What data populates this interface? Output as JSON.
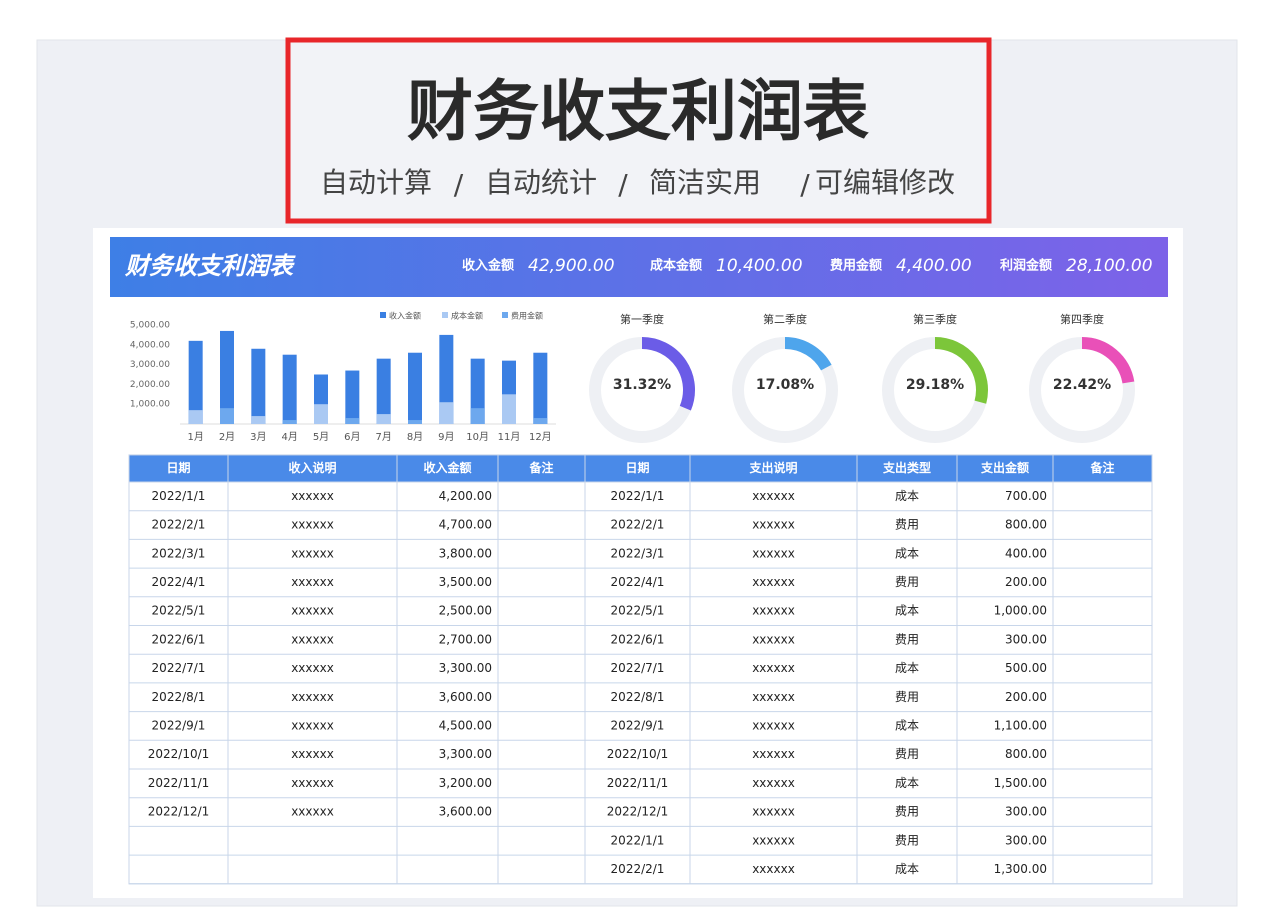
{
  "header": {
    "title": "财务收支利润表",
    "features": [
      "自动计算",
      "自动统计",
      "简洁实用",
      "可编辑修改"
    ]
  },
  "sheet": {
    "title": "财务收支利润表",
    "summary": [
      {
        "label": "收入金额",
        "value": "42,900.00"
      },
      {
        "label": "成本金额",
        "value": "10,400.00"
      },
      {
        "label": "费用金额",
        "value": "4,400.00"
      },
      {
        "label": "利润金额",
        "value": "28,100.00"
      }
    ]
  },
  "chart_data": [
    {
      "type": "bar",
      "categories": [
        "1月",
        "2月",
        "3月",
        "4月",
        "5月",
        "6月",
        "7月",
        "8月",
        "9月",
        "10月",
        "11月",
        "12月"
      ],
      "series": [
        {
          "name": "收入金额",
          "color": "#3a7fe2",
          "values": [
            4200,
            4700,
            3800,
            3500,
            2500,
            2700,
            3300,
            3600,
            4500,
            3300,
            3200,
            3600
          ]
        },
        {
          "name": "成本金额",
          "color": "#aac9f3",
          "values": [
            700,
            0,
            400,
            0,
            1000,
            0,
            500,
            0,
            1100,
            0,
            1500,
            0
          ]
        },
        {
          "name": "费用金额",
          "color": "#6da8ee",
          "values": [
            0,
            800,
            0,
            200,
            0,
            300,
            0,
            200,
            0,
            800,
            0,
            300
          ]
        }
      ],
      "ylim": [
        0,
        5000
      ],
      "yticks": [
        {
          "value": 1000,
          "label": "1,000.00"
        },
        {
          "value": 2000,
          "label": "2,000.00"
        },
        {
          "value": 3000,
          "label": "3,000.00"
        },
        {
          "value": 4000,
          "label": "4,000.00"
        },
        {
          "value": 5000,
          "label": "5,000.00"
        }
      ],
      "legend": "top-right"
    },
    {
      "type": "pie",
      "title": "第一季度",
      "values": [
        31.32
      ],
      "value_labels": [
        "31.32%"
      ],
      "color": "#6b5ce7"
    },
    {
      "type": "pie",
      "title": "第二季度",
      "values": [
        17.08
      ],
      "value_labels": [
        "17.08%"
      ],
      "color": "#4ea5ec"
    },
    {
      "type": "pie",
      "title": "第三季度",
      "values": [
        29.18
      ],
      "value_labels": [
        "29.18%"
      ],
      "color": "#7cc63a"
    },
    {
      "type": "pie",
      "title": "第四季度",
      "values": [
        22.42
      ],
      "value_labels": [
        "22.42%"
      ],
      "color": "#e950b8"
    }
  ],
  "table": {
    "income_headers": [
      "日期",
      "收入说明",
      "收入金额",
      "备注"
    ],
    "expense_headers": [
      "日期",
      "支出说明",
      "支出类型",
      "支出金额",
      "备注"
    ],
    "income_rows": [
      [
        "2022/1/1",
        "xxxxxx",
        "4,200.00"
      ],
      [
        "2022/2/1",
        "xxxxxx",
        "4,700.00"
      ],
      [
        "2022/3/1",
        "xxxxxx",
        "3,800.00"
      ],
      [
        "2022/4/1",
        "xxxxxx",
        "3,500.00"
      ],
      [
        "2022/5/1",
        "xxxxxx",
        "2,500.00"
      ],
      [
        "2022/6/1",
        "xxxxxx",
        "2,700.00"
      ],
      [
        "2022/7/1",
        "xxxxxx",
        "3,300.00"
      ],
      [
        "2022/8/1",
        "xxxxxx",
        "3,600.00"
      ],
      [
        "2022/9/1",
        "xxxxxx",
        "4,500.00"
      ],
      [
        "2022/10/1",
        "xxxxxx",
        "3,300.00"
      ],
      [
        "2022/11/1",
        "xxxxxx",
        "3,200.00"
      ],
      [
        "2022/12/1",
        "xxxxxx",
        "3,600.00"
      ]
    ],
    "expense_rows": [
      [
        "2022/1/1",
        "xxxxxx",
        "成本",
        "700.00"
      ],
      [
        "2022/2/1",
        "xxxxxx",
        "费用",
        "800.00"
      ],
      [
        "2022/3/1",
        "xxxxxx",
        "成本",
        "400.00"
      ],
      [
        "2022/4/1",
        "xxxxxx",
        "费用",
        "200.00"
      ],
      [
        "2022/5/1",
        "xxxxxx",
        "成本",
        "1,000.00"
      ],
      [
        "2022/6/1",
        "xxxxxx",
        "费用",
        "300.00"
      ],
      [
        "2022/7/1",
        "xxxxxx",
        "成本",
        "500.00"
      ],
      [
        "2022/8/1",
        "xxxxxx",
        "费用",
        "200.00"
      ],
      [
        "2022/9/1",
        "xxxxxx",
        "成本",
        "1,100.00"
      ],
      [
        "2022/10/1",
        "xxxxxx",
        "费用",
        "800.00"
      ],
      [
        "2022/11/1",
        "xxxxxx",
        "成本",
        "1,500.00"
      ],
      [
        "2022/12/1",
        "xxxxxx",
        "费用",
        "300.00"
      ],
      [
        "2022/1/1",
        "xxxxxx",
        "费用",
        "300.00"
      ],
      [
        "2022/2/1",
        "xxxxxx",
        "成本",
        "1,300.00"
      ]
    ]
  }
}
